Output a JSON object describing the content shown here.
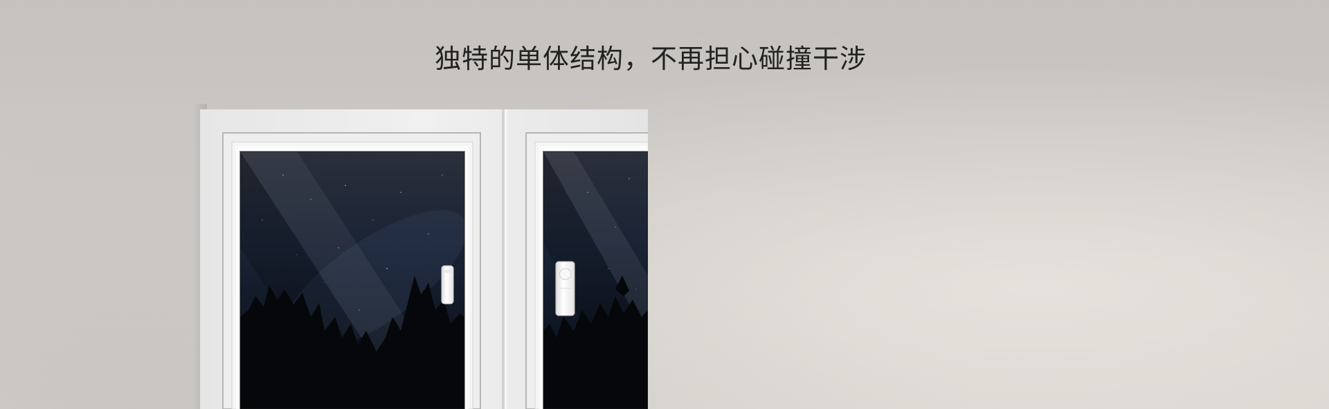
{
  "headline": "独特的单体结构，不再担心碰撞干涉",
  "colors": {
    "wall": "#cbc7c3",
    "frame": "#ececec",
    "frame_edge": "#b9b9b9",
    "glass_sky": "#1b2333",
    "trees": "#05070a",
    "sensor": "#f4f4f4"
  },
  "icons": {
    "sensor_left": "window-sensor-icon",
    "sensor_right": "door-sensor-icon"
  }
}
